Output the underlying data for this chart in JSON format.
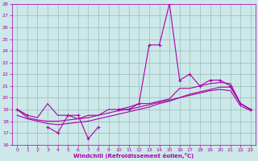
{
  "xlabel": "Windchill (Refroidissement éolien,°C)",
  "x_hours": [
    0,
    1,
    2,
    3,
    4,
    5,
    6,
    7,
    8,
    9,
    10,
    11,
    12,
    13,
    14,
    15,
    16,
    17,
    18,
    19,
    20,
    21,
    22,
    23
  ],
  "y_main": [
    19.0,
    18.5,
    null,
    17.5,
    17.0,
    18.5,
    18.5,
    16.5,
    17.5,
    null,
    19.0,
    19.0,
    19.5,
    24.5,
    24.5,
    28.0,
    21.5,
    22.0,
    21.0,
    21.5,
    21.5,
    21.0,
    19.5,
    19.0
  ],
  "y_trend1": [
    19.0,
    18.5,
    18.3,
    19.5,
    18.5,
    18.5,
    18.2,
    18.5,
    18.5,
    19.0,
    19.0,
    19.2,
    19.5,
    19.5,
    19.7,
    19.9,
    20.8,
    20.8,
    21.0,
    21.2,
    21.3,
    21.2,
    19.5,
    19.0
  ],
  "y_trend2": [
    19.0,
    18.3,
    18.1,
    18.0,
    18.0,
    18.1,
    18.2,
    18.3,
    18.5,
    18.7,
    18.9,
    19.0,
    19.2,
    19.4,
    19.6,
    19.8,
    20.0,
    20.3,
    20.5,
    20.7,
    20.9,
    20.9,
    19.5,
    19.0
  ],
  "y_trend3": [
    18.5,
    18.2,
    18.0,
    17.8,
    17.7,
    17.8,
    17.9,
    18.0,
    18.2,
    18.4,
    18.6,
    18.8,
    19.0,
    19.2,
    19.5,
    19.7,
    20.0,
    20.2,
    20.4,
    20.6,
    20.7,
    20.6,
    19.3,
    18.9
  ],
  "ylim": [
    16,
    28
  ],
  "yticks": [
    16,
    17,
    18,
    19,
    20,
    21,
    22,
    23,
    24,
    25,
    26,
    27,
    28
  ],
  "xticks": [
    0,
    1,
    2,
    3,
    4,
    5,
    6,
    7,
    8,
    9,
    10,
    11,
    12,
    13,
    14,
    15,
    16,
    17,
    18,
    19,
    20,
    21,
    22,
    23
  ],
  "bg_color": "#cce8e8",
  "line_color": "#aa00aa",
  "grid_color": "#99bbbb"
}
